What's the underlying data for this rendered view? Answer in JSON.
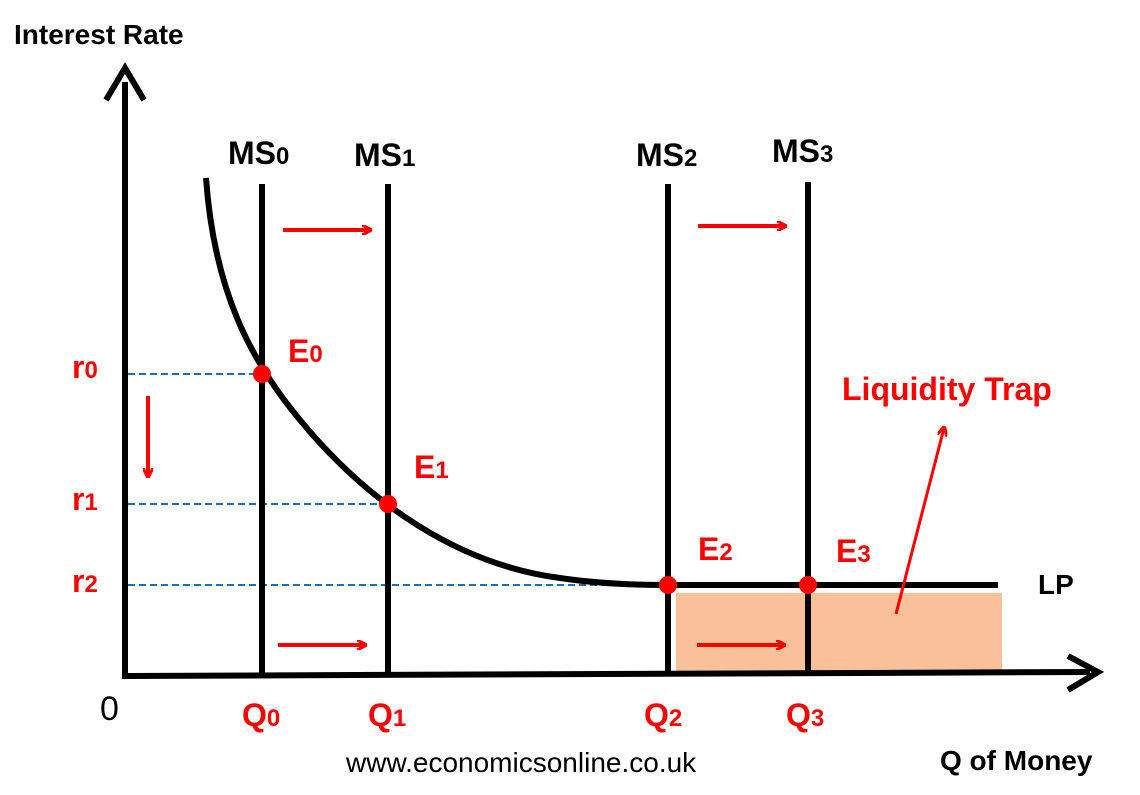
{
  "axes": {
    "y_label": "Interest Rate",
    "x_label": "Q of Money",
    "origin": "0"
  },
  "curves": {
    "lp_label": "LP",
    "ms": [
      {
        "base": "MS",
        "sub": "0"
      },
      {
        "base": "MS",
        "sub": "1"
      },
      {
        "base": "MS",
        "sub": "2"
      },
      {
        "base": "MS",
        "sub": "3"
      }
    ]
  },
  "rates": [
    {
      "base": "r",
      "sub": "0"
    },
    {
      "base": "r",
      "sub": "1"
    },
    {
      "base": "r",
      "sub": "2"
    }
  ],
  "quantities": [
    {
      "base": "Q",
      "sub": "0"
    },
    {
      "base": "Q",
      "sub": "1"
    },
    {
      "base": "Q",
      "sub": "2"
    },
    {
      "base": "Q",
      "sub": "3"
    }
  ],
  "equilibria": [
    {
      "base": "E",
      "sub": "0"
    },
    {
      "base": "E",
      "sub": "1"
    },
    {
      "base": "E",
      "sub": "2"
    },
    {
      "base": "E",
      "sub": "3"
    }
  ],
  "annotation": "Liquidity Trap",
  "source": "www.economicsonline.co.uk",
  "colors": {
    "accent": "#ff0000",
    "guide": "#1f6fb5",
    "trap_fill": "#f9c09a",
    "ink": "#000000"
  }
}
